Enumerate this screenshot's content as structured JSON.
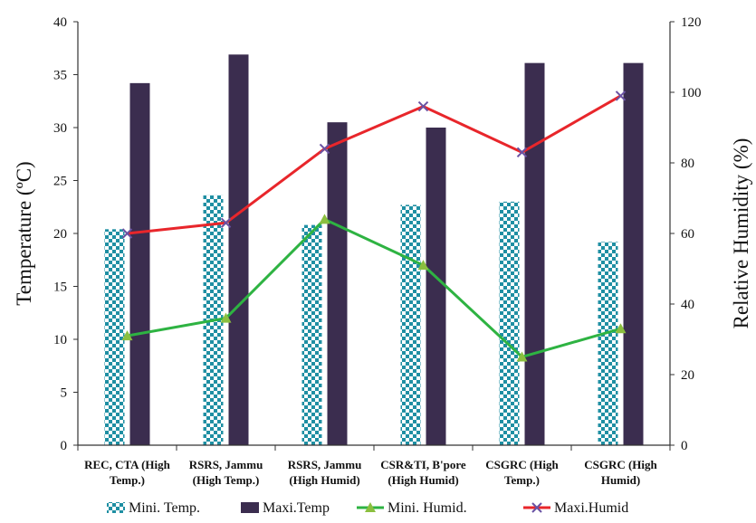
{
  "chart_data": {
    "type": "bar",
    "categories": [
      "REC, CTA (High Temp.)",
      "RSRS, Jammu (High Temp.)",
      "RSRS, Jammu (High Humid)",
      "CSR&TI, B'pore (High Humid)",
      "CSGRC (High Temp.)",
      "CSGRC (High Humid)"
    ],
    "category_lines": [
      [
        "REC, CTA (High",
        "Temp.)"
      ],
      [
        "RSRS, Jammu",
        "(High Temp.)"
      ],
      [
        "RSRS, Jammu",
        "(High Humid)"
      ],
      [
        "CSR&TI, B'pore",
        "(High Humid)"
      ],
      [
        "CSGRC (High",
        "Temp.)"
      ],
      [
        "CSGRC (High",
        "Humid)"
      ]
    ],
    "series": [
      {
        "name": "Mini. Temp.",
        "kind": "bar",
        "axis": "left",
        "color": "#1f8fa3",
        "pattern": "checkerboard",
        "values": [
          20.4,
          23.6,
          20.8,
          22.7,
          23.0,
          19.2
        ]
      },
      {
        "name": "Maxi.Temp",
        "kind": "bar",
        "axis": "left",
        "color": "#3b2d4f",
        "values": [
          34.2,
          36.9,
          30.5,
          30.0,
          36.1,
          36.1
        ]
      },
      {
        "name": "Mini. Humid.",
        "kind": "line",
        "axis": "right",
        "color": "#2eb342",
        "marker": "triangle",
        "values": [
          31,
          36,
          64,
          51,
          25,
          33
        ]
      },
      {
        "name": "Maxi.Humid",
        "kind": "line",
        "axis": "right",
        "color": "#e8262b",
        "marker": "x",
        "marker_color": "#6a52a3",
        "values": [
          60,
          63,
          84,
          96,
          83,
          99
        ]
      }
    ],
    "ylabel": "Temperature (ºC)",
    "ylim": [
      0,
      40
    ],
    "yticks": [
      0,
      5,
      10,
      15,
      20,
      25,
      30,
      35,
      40
    ],
    "y2label": "Relative Humidity (%)",
    "y2lim": [
      0,
      120
    ],
    "y2ticks": [
      0,
      20,
      40,
      60,
      80,
      100,
      120
    ],
    "grid": false,
    "legend_position": "bottom"
  }
}
